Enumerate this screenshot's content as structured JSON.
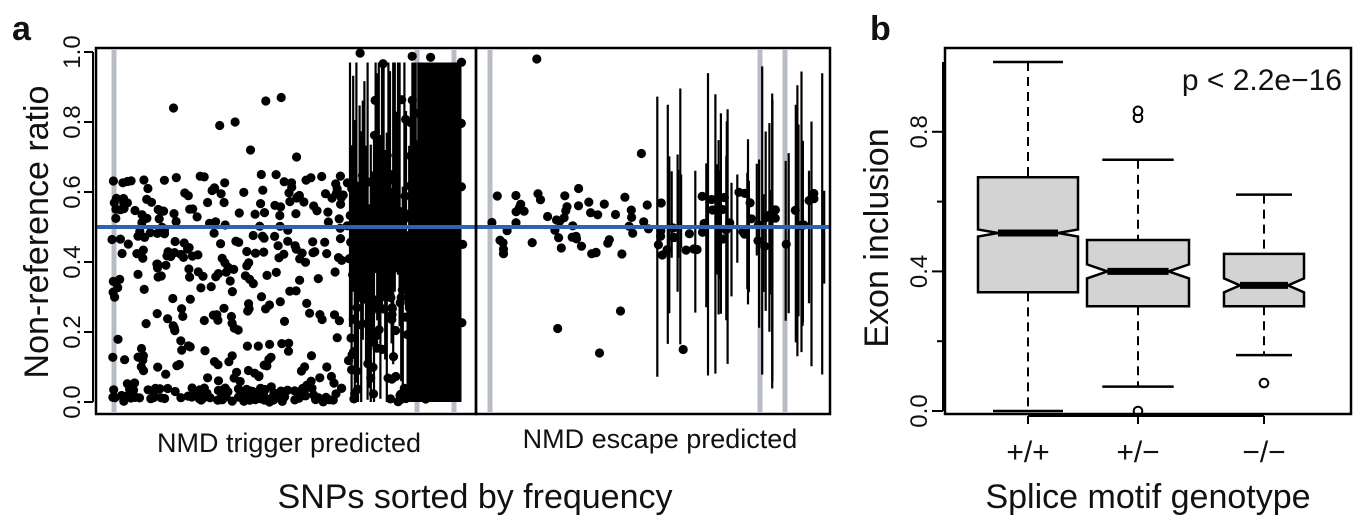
{
  "panel_a": {
    "letter": "a",
    "ylabel": "Non-reference ratio",
    "xlabel": "SNPs sorted by  frequency",
    "group_left": "NMD trigger predicted",
    "group_right": "NMD escape predicted",
    "yticks": [
      "0.0",
      "0.2",
      "0.4",
      "0.6",
      "0.8",
      "1.0"
    ]
  },
  "panel_b": {
    "letter": "b",
    "ylabel": "Exon inclusion",
    "xlabel": "Splice motif genotype",
    "pvalue": "p < 2.2e−16",
    "yticks": [
      "0.0",
      "0.4",
      "0.8"
    ],
    "categories": [
      "+/+",
      "+/−",
      "−/−"
    ]
  },
  "colors": {
    "reference_line": "#2e63b0",
    "box_fill": "#d3d3d3",
    "highlight_bar": "#b8bcc4",
    "points": "#000000"
  },
  "chart_data": [
    {
      "type": "scatter",
      "title": "",
      "xlabel": "SNPs sorted by  frequency",
      "ylabel": "Non-reference ratio",
      "ylim": [
        0,
        1
      ],
      "reference_line": 0.5,
      "groups": [
        "NMD trigger predicted",
        "NMD escape predicted"
      ],
      "sample_points": {
        "NMD trigger predicted": [
          {
            "x": 1,
            "y": 0.63
          },
          {
            "x": 2,
            "y": 0.12
          },
          {
            "x": 3,
            "y": 0.55
          },
          {
            "x": 4,
            "y": 0.84
          },
          {
            "x": 5,
            "y": 0.38
          },
          {
            "x": 6,
            "y": 0.02
          },
          {
            "x": 7,
            "y": 0.79
          },
          {
            "x": 8,
            "y": 0.8
          },
          {
            "x": 9,
            "y": 0.72
          },
          {
            "x": 10,
            "y": 0.86
          },
          {
            "x": 11,
            "y": 0.87
          },
          {
            "x": 12,
            "y": 0.7
          }
        ],
        "NMD escape predicted": [
          {
            "x": 1,
            "y": 0.59
          },
          {
            "x": 2,
            "y": 0.98
          },
          {
            "x": 3,
            "y": 0.21
          },
          {
            "x": 4,
            "y": 0.61
          },
          {
            "x": 5,
            "y": 0.14
          },
          {
            "x": 6,
            "y": 0.26
          },
          {
            "x": 7,
            "y": 0.71
          },
          {
            "x": 8,
            "y": 0.42
          },
          {
            "x": 9,
            "y": 0.15
          },
          {
            "x": 10,
            "y": 0.51
          }
        ]
      }
    },
    {
      "type": "box",
      "title": "",
      "xlabel": "Splice motif genotype",
      "ylabel": "Exon inclusion",
      "ylim": [
        0,
        1
      ],
      "categories": [
        "+/+",
        "+/−",
        "−/−"
      ],
      "boxes": [
        {
          "whisker_low": 0.0,
          "q1": 0.34,
          "median": 0.51,
          "q3": 0.67,
          "whisker_high": 1.0,
          "notch": [
            0.5,
            0.52
          ],
          "outliers": []
        },
        {
          "whisker_low": 0.07,
          "q1": 0.3,
          "median": 0.4,
          "q3": 0.49,
          "whisker_high": 0.72,
          "notch": [
            0.38,
            0.42
          ],
          "outliers": [
            0.0,
            0.84,
            0.86
          ]
        },
        {
          "whisker_low": 0.16,
          "q1": 0.3,
          "median": 0.36,
          "q3": 0.45,
          "whisker_high": 0.62,
          "notch": [
            0.34,
            0.38
          ],
          "outliers": [
            0.08
          ]
        }
      ]
    }
  ]
}
